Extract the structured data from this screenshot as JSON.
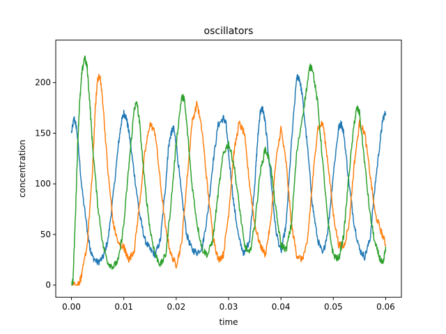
{
  "chart_data": {
    "type": "line",
    "title": "oscillators",
    "xlabel": "time",
    "ylabel": "concentration",
    "xlim": [
      -0.003,
      0.063
    ],
    "ylim": [
      -12,
      242
    ],
    "xticks": [
      0.0,
      0.01,
      0.02,
      0.03,
      0.04,
      0.05,
      0.06
    ],
    "xtick_labels": [
      "0.00",
      "0.01",
      "0.02",
      "0.03",
      "0.04",
      "0.05",
      "0.06"
    ],
    "yticks": [
      0,
      50,
      100,
      150,
      200
    ],
    "ytick_labels": [
      "0",
      "50",
      "100",
      "150",
      "200"
    ],
    "grid": false,
    "legend": "none",
    "series": [
      {
        "color": "#1f77b4",
        "points": [
          [
            0.0,
            150
          ],
          [
            0.0005,
            165
          ],
          [
            0.001,
            155
          ],
          [
            0.002,
            95
          ],
          [
            0.003,
            55
          ],
          [
            0.0035,
            38
          ],
          [
            0.004,
            28
          ],
          [
            0.005,
            22
          ],
          [
            0.006,
            27
          ],
          [
            0.007,
            45
          ],
          [
            0.008,
            90
          ],
          [
            0.009,
            140
          ],
          [
            0.0095,
            160
          ],
          [
            0.01,
            170
          ],
          [
            0.0105,
            165
          ],
          [
            0.011,
            150
          ],
          [
            0.012,
            110
          ],
          [
            0.013,
            70
          ],
          [
            0.014,
            45
          ],
          [
            0.015,
            35
          ],
          [
            0.016,
            30
          ],
          [
            0.017,
            45
          ],
          [
            0.018,
            100
          ],
          [
            0.0185,
            135
          ],
          [
            0.019,
            150
          ],
          [
            0.0195,
            155
          ],
          [
            0.02,
            140
          ],
          [
            0.021,
            90
          ],
          [
            0.022,
            50
          ],
          [
            0.023,
            35
          ],
          [
            0.024,
            32
          ],
          [
            0.025,
            38
          ],
          [
            0.026,
            70
          ],
          [
            0.027,
            120
          ],
          [
            0.028,
            158
          ],
          [
            0.029,
            165
          ],
          [
            0.0295,
            160
          ],
          [
            0.03,
            130
          ],
          [
            0.031,
            80
          ],
          [
            0.032,
            45
          ],
          [
            0.033,
            30
          ],
          [
            0.034,
            45
          ],
          [
            0.035,
            100
          ],
          [
            0.0355,
            140
          ],
          [
            0.036,
            170
          ],
          [
            0.0365,
            175
          ],
          [
            0.037,
            160
          ],
          [
            0.038,
            110
          ],
          [
            0.039,
            55
          ],
          [
            0.04,
            32
          ],
          [
            0.041,
            60
          ],
          [
            0.042,
            140
          ],
          [
            0.043,
            205
          ],
          [
            0.0435,
            205
          ],
          [
            0.044,
            190
          ],
          [
            0.045,
            140
          ],
          [
            0.046,
            80
          ],
          [
            0.047,
            45
          ],
          [
            0.048,
            30
          ],
          [
            0.049,
            55
          ],
          [
            0.05,
            110
          ],
          [
            0.051,
            155
          ],
          [
            0.0515,
            160
          ],
          [
            0.052,
            150
          ],
          [
            0.053,
            100
          ],
          [
            0.054,
            60
          ],
          [
            0.055,
            35
          ],
          [
            0.056,
            28
          ],
          [
            0.057,
            45
          ],
          [
            0.058,
            100
          ],
          [
            0.059,
            145
          ],
          [
            0.0595,
            165
          ],
          [
            0.06,
            170
          ]
        ]
      },
      {
        "color": "#ff7f0e",
        "points": [
          [
            0.0,
            0
          ],
          [
            0.001,
            0
          ],
          [
            0.0015,
            3
          ],
          [
            0.002,
            10
          ],
          [
            0.003,
            40
          ],
          [
            0.004,
            110
          ],
          [
            0.0045,
            170
          ],
          [
            0.005,
            205
          ],
          [
            0.0055,
            205
          ],
          [
            0.006,
            180
          ],
          [
            0.007,
            110
          ],
          [
            0.008,
            60
          ],
          [
            0.009,
            40
          ],
          [
            0.01,
            38
          ],
          [
            0.0105,
            30
          ],
          [
            0.011,
            25
          ],
          [
            0.012,
            35
          ],
          [
            0.013,
            80
          ],
          [
            0.014,
            130
          ],
          [
            0.015,
            160
          ],
          [
            0.016,
            150
          ],
          [
            0.017,
            100
          ],
          [
            0.018,
            55
          ],
          [
            0.019,
            30
          ],
          [
            0.02,
            20
          ],
          [
            0.021,
            40
          ],
          [
            0.022,
            100
          ],
          [
            0.023,
            160
          ],
          [
            0.024,
            180
          ],
          [
            0.025,
            150
          ],
          [
            0.026,
            95
          ],
          [
            0.027,
            50
          ],
          [
            0.028,
            25
          ],
          [
            0.029,
            30
          ],
          [
            0.03,
            70
          ],
          [
            0.031,
            130
          ],
          [
            0.032,
            160
          ],
          [
            0.033,
            150
          ],
          [
            0.034,
            100
          ],
          [
            0.035,
            60
          ],
          [
            0.036,
            40
          ],
          [
            0.037,
            30
          ],
          [
            0.038,
            60
          ],
          [
            0.039,
            120
          ],
          [
            0.04,
            155
          ],
          [
            0.041,
            120
          ],
          [
            0.042,
            60
          ],
          [
            0.043,
            30
          ],
          [
            0.044,
            25
          ],
          [
            0.045,
            40
          ],
          [
            0.046,
            100
          ],
          [
            0.047,
            155
          ],
          [
            0.048,
            160
          ],
          [
            0.049,
            120
          ],
          [
            0.05,
            70
          ],
          [
            0.051,
            40
          ],
          [
            0.052,
            38
          ],
          [
            0.053,
            60
          ],
          [
            0.054,
            120
          ],
          [
            0.055,
            160
          ],
          [
            0.056,
            150
          ],
          [
            0.057,
            110
          ],
          [
            0.058,
            70
          ],
          [
            0.059,
            55
          ],
          [
            0.06,
            40
          ]
        ]
      },
      {
        "color": "#2ca02c",
        "points": [
          [
            0.0,
            0
          ],
          [
            0.0003,
            5
          ],
          [
            0.0008,
            75
          ],
          [
            0.0012,
            140
          ],
          [
            0.0015,
            175
          ],
          [
            0.002,
            210
          ],
          [
            0.0025,
            225
          ],
          [
            0.003,
            215
          ],
          [
            0.0035,
            180
          ],
          [
            0.004,
            140
          ],
          [
            0.005,
            80
          ],
          [
            0.006,
            40
          ],
          [
            0.007,
            22
          ],
          [
            0.008,
            18
          ],
          [
            0.009,
            25
          ],
          [
            0.01,
            60
          ],
          [
            0.011,
            120
          ],
          [
            0.012,
            175
          ],
          [
            0.0125,
            180
          ],
          [
            0.013,
            160
          ],
          [
            0.014,
            100
          ],
          [
            0.015,
            55
          ],
          [
            0.016,
            30
          ],
          [
            0.017,
            20
          ],
          [
            0.018,
            30
          ],
          [
            0.019,
            80
          ],
          [
            0.02,
            140
          ],
          [
            0.021,
            185
          ],
          [
            0.0215,
            185
          ],
          [
            0.022,
            160
          ],
          [
            0.023,
            100
          ],
          [
            0.024,
            60
          ],
          [
            0.025,
            35
          ],
          [
            0.026,
            30
          ],
          [
            0.027,
            45
          ],
          [
            0.028,
            90
          ],
          [
            0.029,
            130
          ],
          [
            0.03,
            140
          ],
          [
            0.031,
            120
          ],
          [
            0.032,
            80
          ],
          [
            0.033,
            40
          ],
          [
            0.034,
            30
          ],
          [
            0.035,
            60
          ],
          [
            0.036,
            110
          ],
          [
            0.037,
            135
          ],
          [
            0.038,
            120
          ],
          [
            0.039,
            75
          ],
          [
            0.04,
            40
          ],
          [
            0.041,
            35
          ],
          [
            0.042,
            60
          ],
          [
            0.043,
            130
          ],
          [
            0.0445,
            180
          ],
          [
            0.0455,
            215
          ],
          [
            0.046,
            215
          ],
          [
            0.047,
            180
          ],
          [
            0.048,
            120
          ],
          [
            0.049,
            60
          ],
          [
            0.05,
            30
          ],
          [
            0.051,
            25
          ],
          [
            0.052,
            50
          ],
          [
            0.053,
            110
          ],
          [
            0.054,
            160
          ],
          [
            0.0545,
            175
          ],
          [
            0.055,
            170
          ],
          [
            0.056,
            120
          ],
          [
            0.057,
            70
          ],
          [
            0.058,
            40
          ],
          [
            0.059,
            25
          ],
          [
            0.0595,
            20
          ],
          [
            0.06,
            38
          ]
        ]
      }
    ]
  }
}
